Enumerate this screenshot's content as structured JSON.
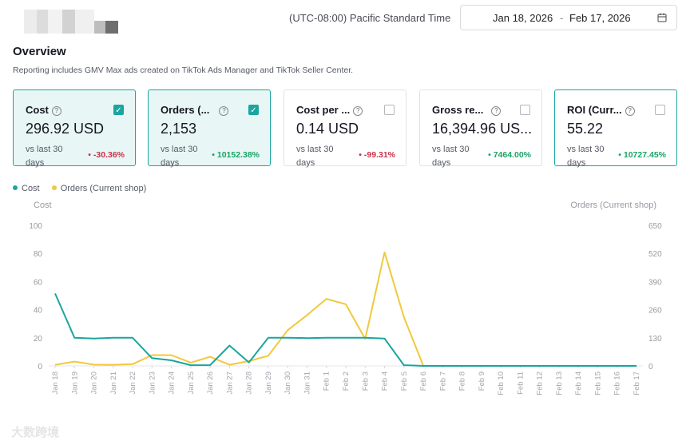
{
  "header": {
    "timezone": "(UTC-08:00) Pacific Standard Time",
    "date_start": "Jan 18, 2026",
    "date_sep": "-",
    "date_end": "Feb 17, 2026",
    "calendar_icon": "calendar-icon"
  },
  "overview": {
    "title": "Overview",
    "subtitle": "Reporting includes GMV Max ads created on TikTok Ads Manager and TikTok Seller Center."
  },
  "cards": [
    {
      "title": "Cost",
      "value": "296.92 USD",
      "compare": "vs last 30 days",
      "delta": "-30.36%",
      "trend": "down",
      "checked": true
    },
    {
      "title": "Orders (...",
      "value": "2,153",
      "compare": "vs last 30 days",
      "delta": "10152.38%",
      "trend": "up",
      "checked": true
    },
    {
      "title": "Cost per ...",
      "value": "0.14 USD",
      "compare": "vs last 30 days",
      "delta": "-99.31%",
      "trend": "down",
      "checked": false
    },
    {
      "title": "Gross re...",
      "value": "16,394.96 US...",
      "compare": "vs last 30 days",
      "delta": "7464.00%",
      "trend": "up",
      "checked": false
    },
    {
      "title": "ROI (Curr...",
      "value": "55.22",
      "compare": "vs last 30 days",
      "delta": "10727.45%",
      "trend": "up",
      "checked": false
    }
  ],
  "legend": {
    "cost": "Cost",
    "orders": "Orders (Current shop)"
  },
  "colors": {
    "accent": "#1aa5a0",
    "cost_line": "#1aa5a0",
    "orders_line": "#f0c93c",
    "negative": "#c8324a",
    "positive": "#1aa367"
  },
  "chart_data": {
    "type": "line",
    "ylabel_left": "Cost",
    "ylabel_right": "Orders (Current shop)",
    "y_left_ticks": [
      "100",
      "80",
      "60",
      "40",
      "20",
      "0"
    ],
    "y_right_ticks": [
      "650",
      "520",
      "390",
      "260",
      "130",
      "0"
    ],
    "ylim_left": [
      0,
      100
    ],
    "ylim_right": [
      0,
      650
    ],
    "grid": false,
    "legend_position": "top-left",
    "x": [
      "Jan 18",
      "Jan 19",
      "Jan 20",
      "Jan 21",
      "Jan 22",
      "Jan 23",
      "Jan 24",
      "Jan 25",
      "Jan 26",
      "Jan 27",
      "Jan 28",
      "Jan 29",
      "Jan 30",
      "Jan 31",
      "Feb 1",
      "Feb 2",
      "Feb 3",
      "Feb 4",
      "Feb 5",
      "Feb 6",
      "Feb 7",
      "Feb 8",
      "Feb 9",
      "Feb 10",
      "Feb 11",
      "Feb 12",
      "Feb 13",
      "Feb 14",
      "Feb 15",
      "Feb 16",
      "Feb 17"
    ],
    "series": [
      {
        "name": "Cost",
        "axis": "left",
        "values": [
          51.5,
          20,
          19.5,
          20,
          20,
          5.5,
          4,
          0.5,
          0.5,
          14.5,
          2.5,
          20,
          20,
          19.8,
          20,
          20,
          20,
          19.5,
          0.5,
          0,
          0,
          0,
          0,
          0,
          0,
          0,
          0,
          0,
          0,
          0,
          0
        ]
      },
      {
        "name": "Orders (Current shop)",
        "axis": "right",
        "values": [
          5,
          20,
          6,
          5,
          8,
          50,
          50,
          15,
          42,
          5,
          22,
          47,
          165,
          235,
          310,
          285,
          125,
          525,
          225,
          0,
          0,
          0,
          0,
          0,
          0,
          0,
          0,
          0,
          0,
          0,
          0
        ]
      }
    ]
  },
  "watermark": "大数跨境"
}
